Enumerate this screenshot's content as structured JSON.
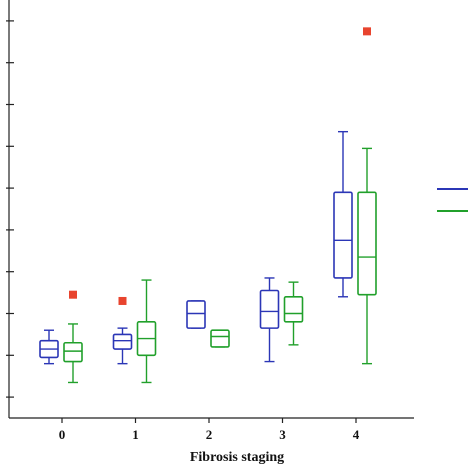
{
  "chart_data": {
    "type": "boxplot",
    "xlabel": "Fibrosis staging",
    "ylabel": "",
    "categories": [
      "0",
      "1",
      "2",
      "3",
      "4"
    ],
    "ylim": [
      0,
      100
    ],
    "yticks": [
      5,
      15,
      25,
      35,
      45,
      55,
      65,
      75,
      85,
      95
    ],
    "grid": false,
    "legend": "right",
    "series": [
      {
        "color": "#2B36B6",
        "boxes": [
          {
            "category": "0",
            "whisker_low": 13,
            "q1": 14.5,
            "median": 16.5,
            "q3": 18.5,
            "whisker_high": 21,
            "outliers": []
          },
          {
            "category": "1",
            "whisker_low": 13,
            "q1": 16.5,
            "median": 18.5,
            "q3": 20,
            "whisker_high": 21.5,
            "outliers": [
              28
            ]
          },
          {
            "category": "2",
            "whisker_low": 21.5,
            "q1": 21.5,
            "median": 25,
            "q3": 28,
            "whisker_high": 28,
            "outliers": []
          },
          {
            "category": "3",
            "whisker_low": 13.5,
            "q1": 21.5,
            "median": 25.5,
            "q3": 30.5,
            "whisker_high": 33.5,
            "outliers": []
          },
          {
            "category": "4",
            "whisker_low": 29,
            "q1": 33.5,
            "median": 42.5,
            "q3": 54,
            "whisker_high": 68.5,
            "outliers": []
          }
        ]
      },
      {
        "color": "#21A02B",
        "boxes": [
          {
            "category": "0",
            "whisker_low": 8.5,
            "q1": 13.5,
            "median": 16,
            "q3": 18,
            "whisker_high": 22.5,
            "outliers": [
              29.5
            ]
          },
          {
            "category": "1",
            "whisker_low": 8.5,
            "q1": 15,
            "median": 19,
            "q3": 23,
            "whisker_high": 33,
            "outliers": []
          },
          {
            "category": "2",
            "whisker_low": 17,
            "q1": 17,
            "median": 19.5,
            "q3": 21,
            "whisker_high": 21,
            "outliers": []
          },
          {
            "category": "3",
            "whisker_low": 17.5,
            "q1": 23,
            "median": 25,
            "q3": 29,
            "whisker_high": 32.5,
            "outliers": []
          },
          {
            "category": "4",
            "whisker_low": 13,
            "q1": 29.5,
            "median": 38.5,
            "q3": 54,
            "whisker_high": 64.5,
            "outliers": [
              92.5
            ]
          }
        ]
      }
    ],
    "outlier_color": "#E8442E"
  }
}
